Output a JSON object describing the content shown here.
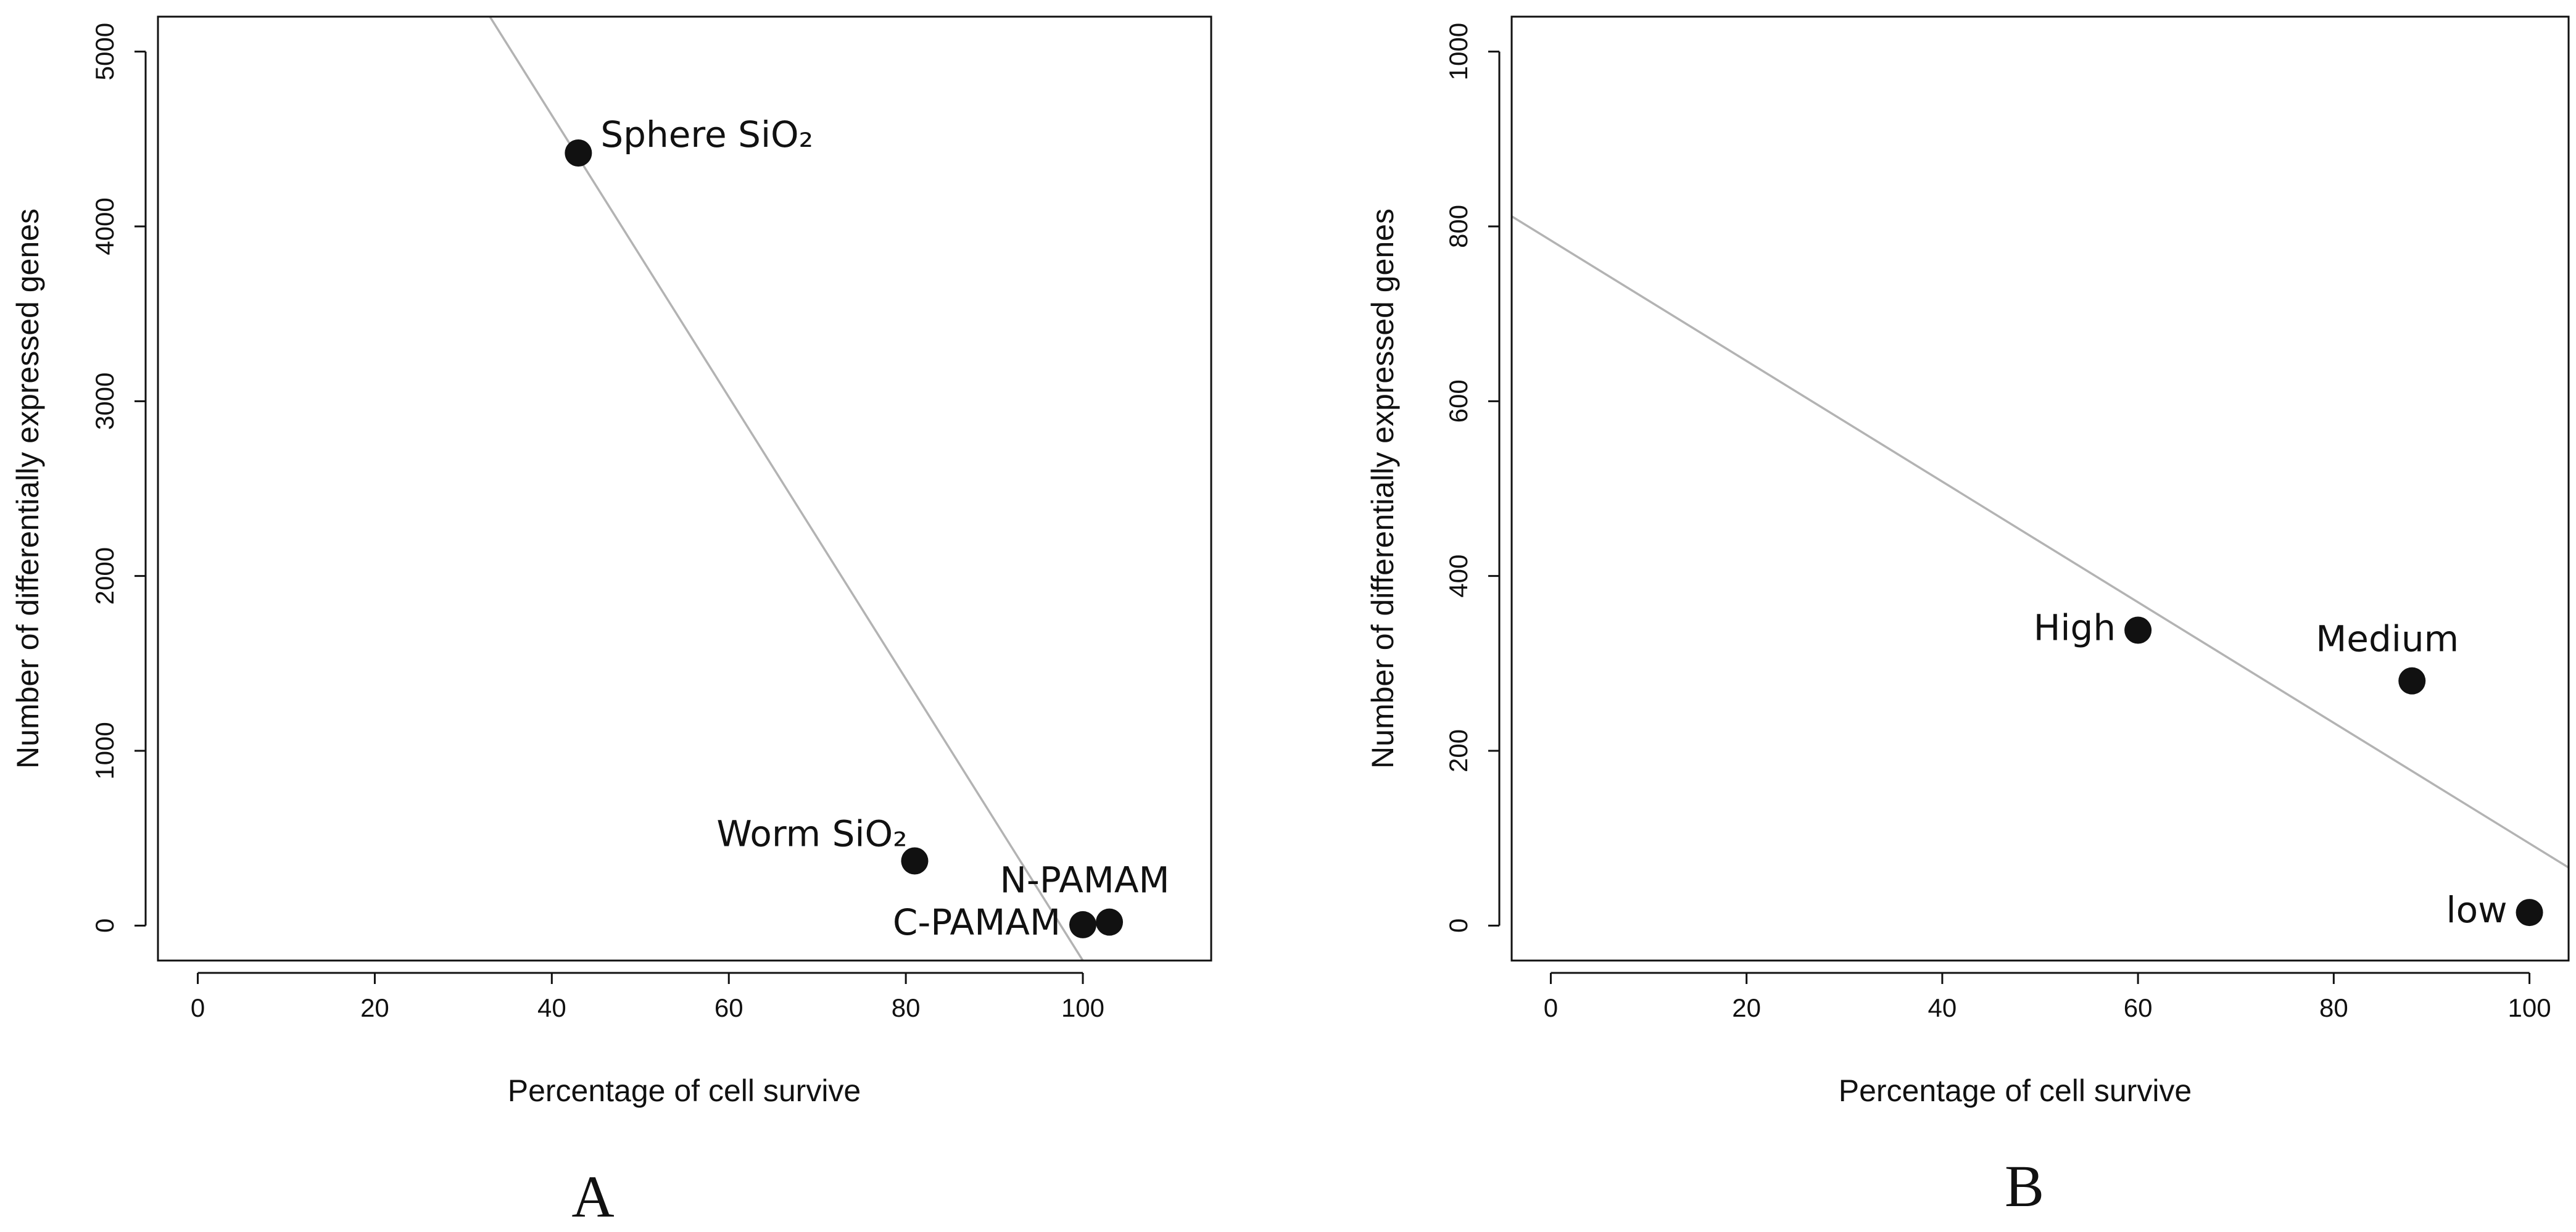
{
  "chart_data": [
    {
      "type": "scatter",
      "panel_label": "A",
      "xlabel": "Percentage of cell survive",
      "ylabel": "Number of differentially expressed genes",
      "xlim": [
        -4.5,
        114.5
      ],
      "ylim": [
        -200,
        5200
      ],
      "xticks": [
        0,
        20,
        40,
        60,
        80,
        100
      ],
      "yticks": [
        0,
        1000,
        2000,
        3000,
        4000,
        5000
      ],
      "points": [
        {
          "label": "Sphere SiO₂",
          "x": 43,
          "y": 4420,
          "label_side": "right"
        },
        {
          "label": "Worm SiO₂",
          "x": 81,
          "y": 370,
          "label_side": "upper-left"
        },
        {
          "label": "C-PAMAM",
          "x": 100,
          "y": 5,
          "label_side": "left"
        },
        {
          "label": "N-PAMAM",
          "x": 103,
          "y": 20,
          "label_side": "above"
        }
      ],
      "regression_line": {
        "intercept": 7860,
        "slope": -80.6
      },
      "grid": false
    },
    {
      "type": "scatter",
      "panel_label": "B",
      "xlabel": "Percentage of cell survive",
      "ylabel": "Number of differentially expressed genes",
      "xlim": [
        -4,
        104
      ],
      "ylim": [
        -40,
        1040
      ],
      "xticks": [
        0,
        20,
        40,
        60,
        80,
        100
      ],
      "yticks": [
        0,
        200,
        400,
        600,
        800,
        1000
      ],
      "points": [
        {
          "label": "High",
          "x": 60,
          "y": 338,
          "label_side": "left"
        },
        {
          "label": "Medium",
          "x": 88,
          "y": 280,
          "label_side": "above"
        },
        {
          "label": "low",
          "x": 100,
          "y": 15,
          "label_side": "left"
        }
      ],
      "regression_line": {
        "intercept": 784,
        "slope": -6.9
      },
      "grid": false
    }
  ]
}
